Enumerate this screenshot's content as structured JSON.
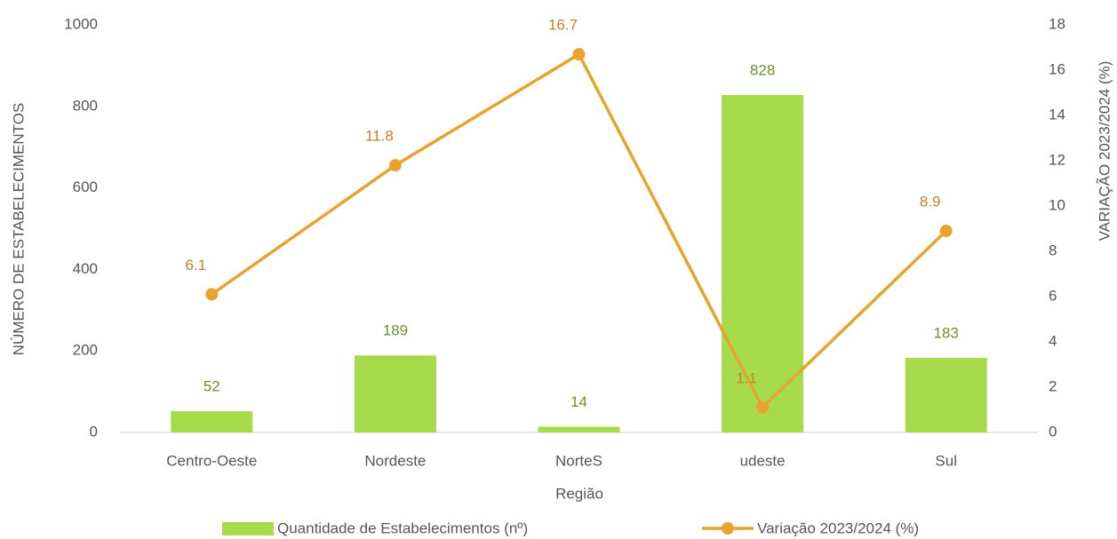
{
  "chart_data": {
    "type": "bar-line",
    "categories": [
      "Centro-Oeste",
      "Nordeste",
      "NorteS",
      "udeste",
      "Sul"
    ],
    "xlabel": "Região",
    "ylabel": "NÚMERO DE ESTABELECIMENTOS",
    "y2label": "VARIAÇÃO 2023/2024 (%)",
    "ylim": [
      0,
      1000
    ],
    "yticks": [
      0,
      200,
      400,
      600,
      800,
      1000
    ],
    "y2lim": [
      0,
      18
    ],
    "y2ticks": [
      0,
      2,
      4,
      6,
      8,
      10,
      12,
      14,
      16,
      18
    ],
    "series": [
      {
        "name": "Quantidade de Estabelecimentos (nº)",
        "type": "bar",
        "color": "#a6dc4c",
        "values": [
          52,
          189,
          14,
          828,
          183
        ]
      },
      {
        "name": "Variação 2023/2024 (%)",
        "type": "line",
        "axis": "y2",
        "color": "#e8a22e",
        "values": [
          6.1,
          11.8,
          16.7,
          1.1,
          8.9
        ]
      }
    ],
    "legend": "bottom"
  }
}
